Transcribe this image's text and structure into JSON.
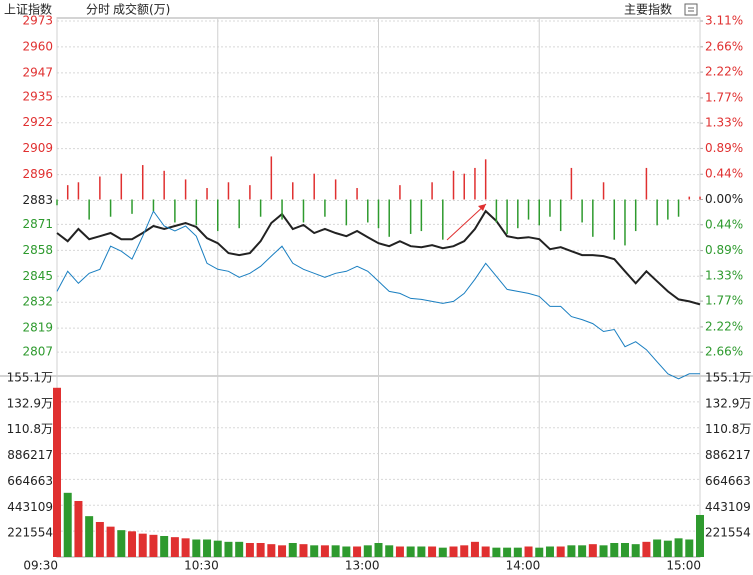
{
  "header": {
    "title": "上证指数",
    "tabs": [
      "分时",
      "成交额(万)"
    ],
    "button": "主要指数"
  },
  "chart_data": {
    "type": "line",
    "x": [
      0,
      4,
      8,
      12,
      16,
      20,
      24,
      28,
      32,
      36,
      40,
      44,
      48,
      52,
      56,
      60,
      64,
      68,
      72,
      76,
      80,
      84,
      88,
      92,
      96,
      100,
      104,
      108,
      112,
      116,
      120,
      124,
      128,
      132,
      136,
      140,
      144,
      148,
      152,
      156,
      160,
      164,
      168,
      172,
      176,
      180,
      184,
      188,
      192,
      196,
      200,
      204,
      208,
      212,
      216,
      220,
      224,
      228,
      232,
      236,
      240
    ],
    "xlim": [
      0,
      240
    ],
    "xticks": [
      {
        "value": 0,
        "label": "09:30"
      },
      {
        "value": 60,
        "label": "10:30"
      },
      {
        "value": 120,
        "label": "13:00"
      },
      {
        "value": 180,
        "label": "14:00"
      },
      {
        "value": 240,
        "label": "15:00"
      }
    ],
    "ylim": [
      2794,
      2973
    ],
    "yticks": [
      2973,
      2960,
      2947,
      2935,
      2922,
      2909,
      2896,
      2883,
      2871,
      2858,
      2845,
      2832,
      2819,
      2807
    ],
    "y2lim": [
      -3.11,
      3.11
    ],
    "y2ticks": [
      {
        "value": 3.11,
        "label": "3.11%"
      },
      {
        "value": 2.66,
        "label": "2.66%"
      },
      {
        "value": 2.22,
        "label": "2.22%"
      },
      {
        "value": 1.77,
        "label": "1.77%"
      },
      {
        "value": 1.33,
        "label": "1.33%"
      },
      {
        "value": 0.89,
        "label": "0.89%"
      },
      {
        "value": 0.44,
        "label": "0.44%"
      },
      {
        "value": 0,
        "label": "0.00%"
      },
      {
        "value": -0.44,
        "label": "0.44%"
      },
      {
        "value": -0.89,
        "label": "0.89%"
      },
      {
        "value": -1.33,
        "label": "1.33%"
      },
      {
        "value": -1.77,
        "label": "1.77%"
      },
      {
        "value": -2.22,
        "label": "2.22%"
      },
      {
        "value": -2.66,
        "label": "2.66%"
      }
    ],
    "up_color": "#e03030",
    "down_color": "#2e9a2e",
    "series": [
      {
        "color": "#222222",
        "values": [
          2866.7,
          2862.6,
          2868.7,
          2863.6,
          2865.1,
          2866.7,
          2863.6,
          2863.6,
          2866.7,
          2870.2,
          2868.7,
          2870.2,
          2871.7,
          2869.7,
          2864.1,
          2861.6,
          2856.6,
          2855.6,
          2856.6,
          2862.6,
          2871.7,
          2876.2,
          2868.7,
          2870.7,
          2866.7,
          2868.7,
          2866.7,
          2865.1,
          2867.7,
          2864.6,
          2861.6,
          2860.1,
          2862.6,
          2860.1,
          2859.6,
          2860.6,
          2859.1,
          2860.1,
          2862.6,
          2868.7,
          2877.7,
          2872.7,
          2865.1,
          2864.1,
          2864.6,
          2863.6,
          2858.6,
          2859.6,
          2857.6,
          2855.6,
          2855.6,
          2855.1,
          2853.6,
          2847.5,
          2841.5,
          2847.5,
          2842.5,
          2837.4,
          2833.4,
          2832.4,
          2830.9
        ]
      },
      {
        "color": "#1a7fc1",
        "values": [
          2837.4,
          2847.5,
          2841.5,
          2846.5,
          2848.5,
          2860.1,
          2857.6,
          2853.6,
          2865.1,
          2877.7,
          2870.2,
          2867.7,
          2870.2,
          2865.1,
          2851.5,
          2848.5,
          2847.5,
          2844.5,
          2846.5,
          2850.0,
          2855.1,
          2860.1,
          2851.5,
          2848.5,
          2846.5,
          2844.5,
          2846.5,
          2847.5,
          2850.0,
          2847.5,
          2842.5,
          2837.4,
          2836.4,
          2833.9,
          2833.4,
          2832.4,
          2831.4,
          2832.4,
          2836.4,
          2843.5,
          2851.5,
          2845.0,
          2838.4,
          2837.4,
          2836.4,
          2834.9,
          2829.9,
          2829.9,
          2824.8,
          2823.3,
          2821.3,
          2817.3,
          2818.3,
          2809.7,
          2812.2,
          2808.2,
          2802.1,
          2796.1,
          2793.6,
          2796.1,
          2796.1
        ]
      },
      {
        "type": "bar",
        "axis": "y2",
        "values": [
          -0.1,
          0.25,
          0.3,
          -0.35,
          0.4,
          -0.3,
          0.45,
          -0.25,
          0.6,
          -0.2,
          0.5,
          -0.4,
          0.35,
          -0.45,
          0.2,
          -0.55,
          0.3,
          -0.5,
          0.25,
          -0.3,
          0.75,
          -0.35,
          0.3,
          -0.4,
          0.45,
          -0.3,
          0.35,
          -0.45,
          0.2,
          -0.4,
          -0.5,
          -0.65,
          0.25,
          -0.6,
          -0.55,
          0.3,
          -0.7,
          0.5,
          0.45,
          0.55,
          0.7,
          -0.4,
          -0.6,
          -0.5,
          -0.35,
          -0.45,
          -0.3,
          -0.55,
          0.55,
          -0.4,
          -0.65,
          0.3,
          -0.7,
          -0.8,
          -0.55,
          0.55,
          -0.45,
          -0.35,
          -0.3,
          0.05,
          0.05
        ]
      }
    ],
    "volume": {
      "type": "bar",
      "ylim": [
        0,
        1551000
      ],
      "yticks": [
        {
          "value": 1551000,
          "label": "155.1万"
        },
        {
          "value": 1329000,
          "label": "132.9万"
        },
        {
          "value": 1108000,
          "label": "110.8万"
        },
        886217,
        664663,
        443109,
        221554
      ],
      "values": [
        1450000,
        550000,
        480000,
        350000,
        300000,
        260000,
        230000,
        220000,
        200000,
        190000,
        180000,
        170000,
        160000,
        150000,
        150000,
        140000,
        130000,
        130000,
        120000,
        120000,
        110000,
        100000,
        120000,
        110000,
        100000,
        100000,
        100000,
        90000,
        90000,
        100000,
        120000,
        100000,
        90000,
        90000,
        90000,
        90000,
        80000,
        90000,
        100000,
        130000,
        90000,
        80000,
        80000,
        80000,
        90000,
        80000,
        90000,
        90000,
        100000,
        100000,
        110000,
        100000,
        120000,
        120000,
        110000,
        130000,
        150000,
        140000,
        160000,
        150000,
        360000
      ]
    }
  }
}
